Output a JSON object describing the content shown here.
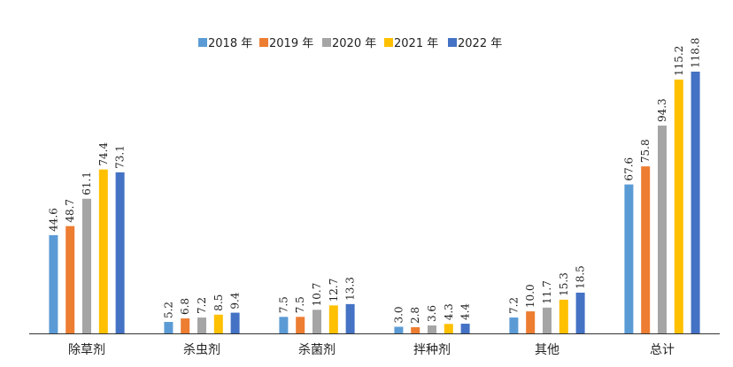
{
  "chart_data": {
    "type": "bar",
    "categories": [
      "除草剂",
      "杀虫剂",
      "杀菌剂",
      "拌种剂",
      "其他",
      "总计"
    ],
    "series": [
      {
        "name": "2018 年",
        "color": "#5B9BD5",
        "values": [
          44.6,
          5.2,
          7.5,
          3.0,
          7.2,
          67.6
        ]
      },
      {
        "name": "2019 年",
        "color": "#ED7D31",
        "values": [
          48.7,
          6.8,
          7.5,
          2.8,
          10.0,
          75.8
        ]
      },
      {
        "name": "2020 年",
        "color": "#A5A5A5",
        "values": [
          61.1,
          7.2,
          10.7,
          3.6,
          11.7,
          94.3
        ]
      },
      {
        "name": "2021 年",
        "color": "#FFC000",
        "values": [
          74.4,
          8.5,
          12.7,
          4.3,
          15.3,
          115.2
        ]
      },
      {
        "name": "2022 年",
        "color": "#4472C4",
        "values": [
          73.1,
          9.4,
          13.3,
          4.4,
          18.5,
          118.8
        ]
      }
    ],
    "data_labels": [
      [
        "44.6",
        "5.2",
        "7.5",
        "3.0",
        "7.2",
        "67.6"
      ],
      [
        "48.7",
        "6.8",
        "7.5",
        "2.8",
        "10.0",
        "75.8"
      ],
      [
        "61.1",
        "7.2",
        "10.7",
        "3.6",
        "11.7",
        "94.3"
      ],
      [
        "74.4",
        "8.5",
        "12.7",
        "4.3",
        "15.3",
        "115.2"
      ],
      [
        "73.1",
        "9.4",
        "13.3",
        "4.4",
        "18.5",
        "118.8"
      ]
    ],
    "ylim": [
      0,
      125
    ],
    "grid": false,
    "legend_position": "top-center",
    "title": "",
    "xlabel": "",
    "ylabel": ""
  }
}
